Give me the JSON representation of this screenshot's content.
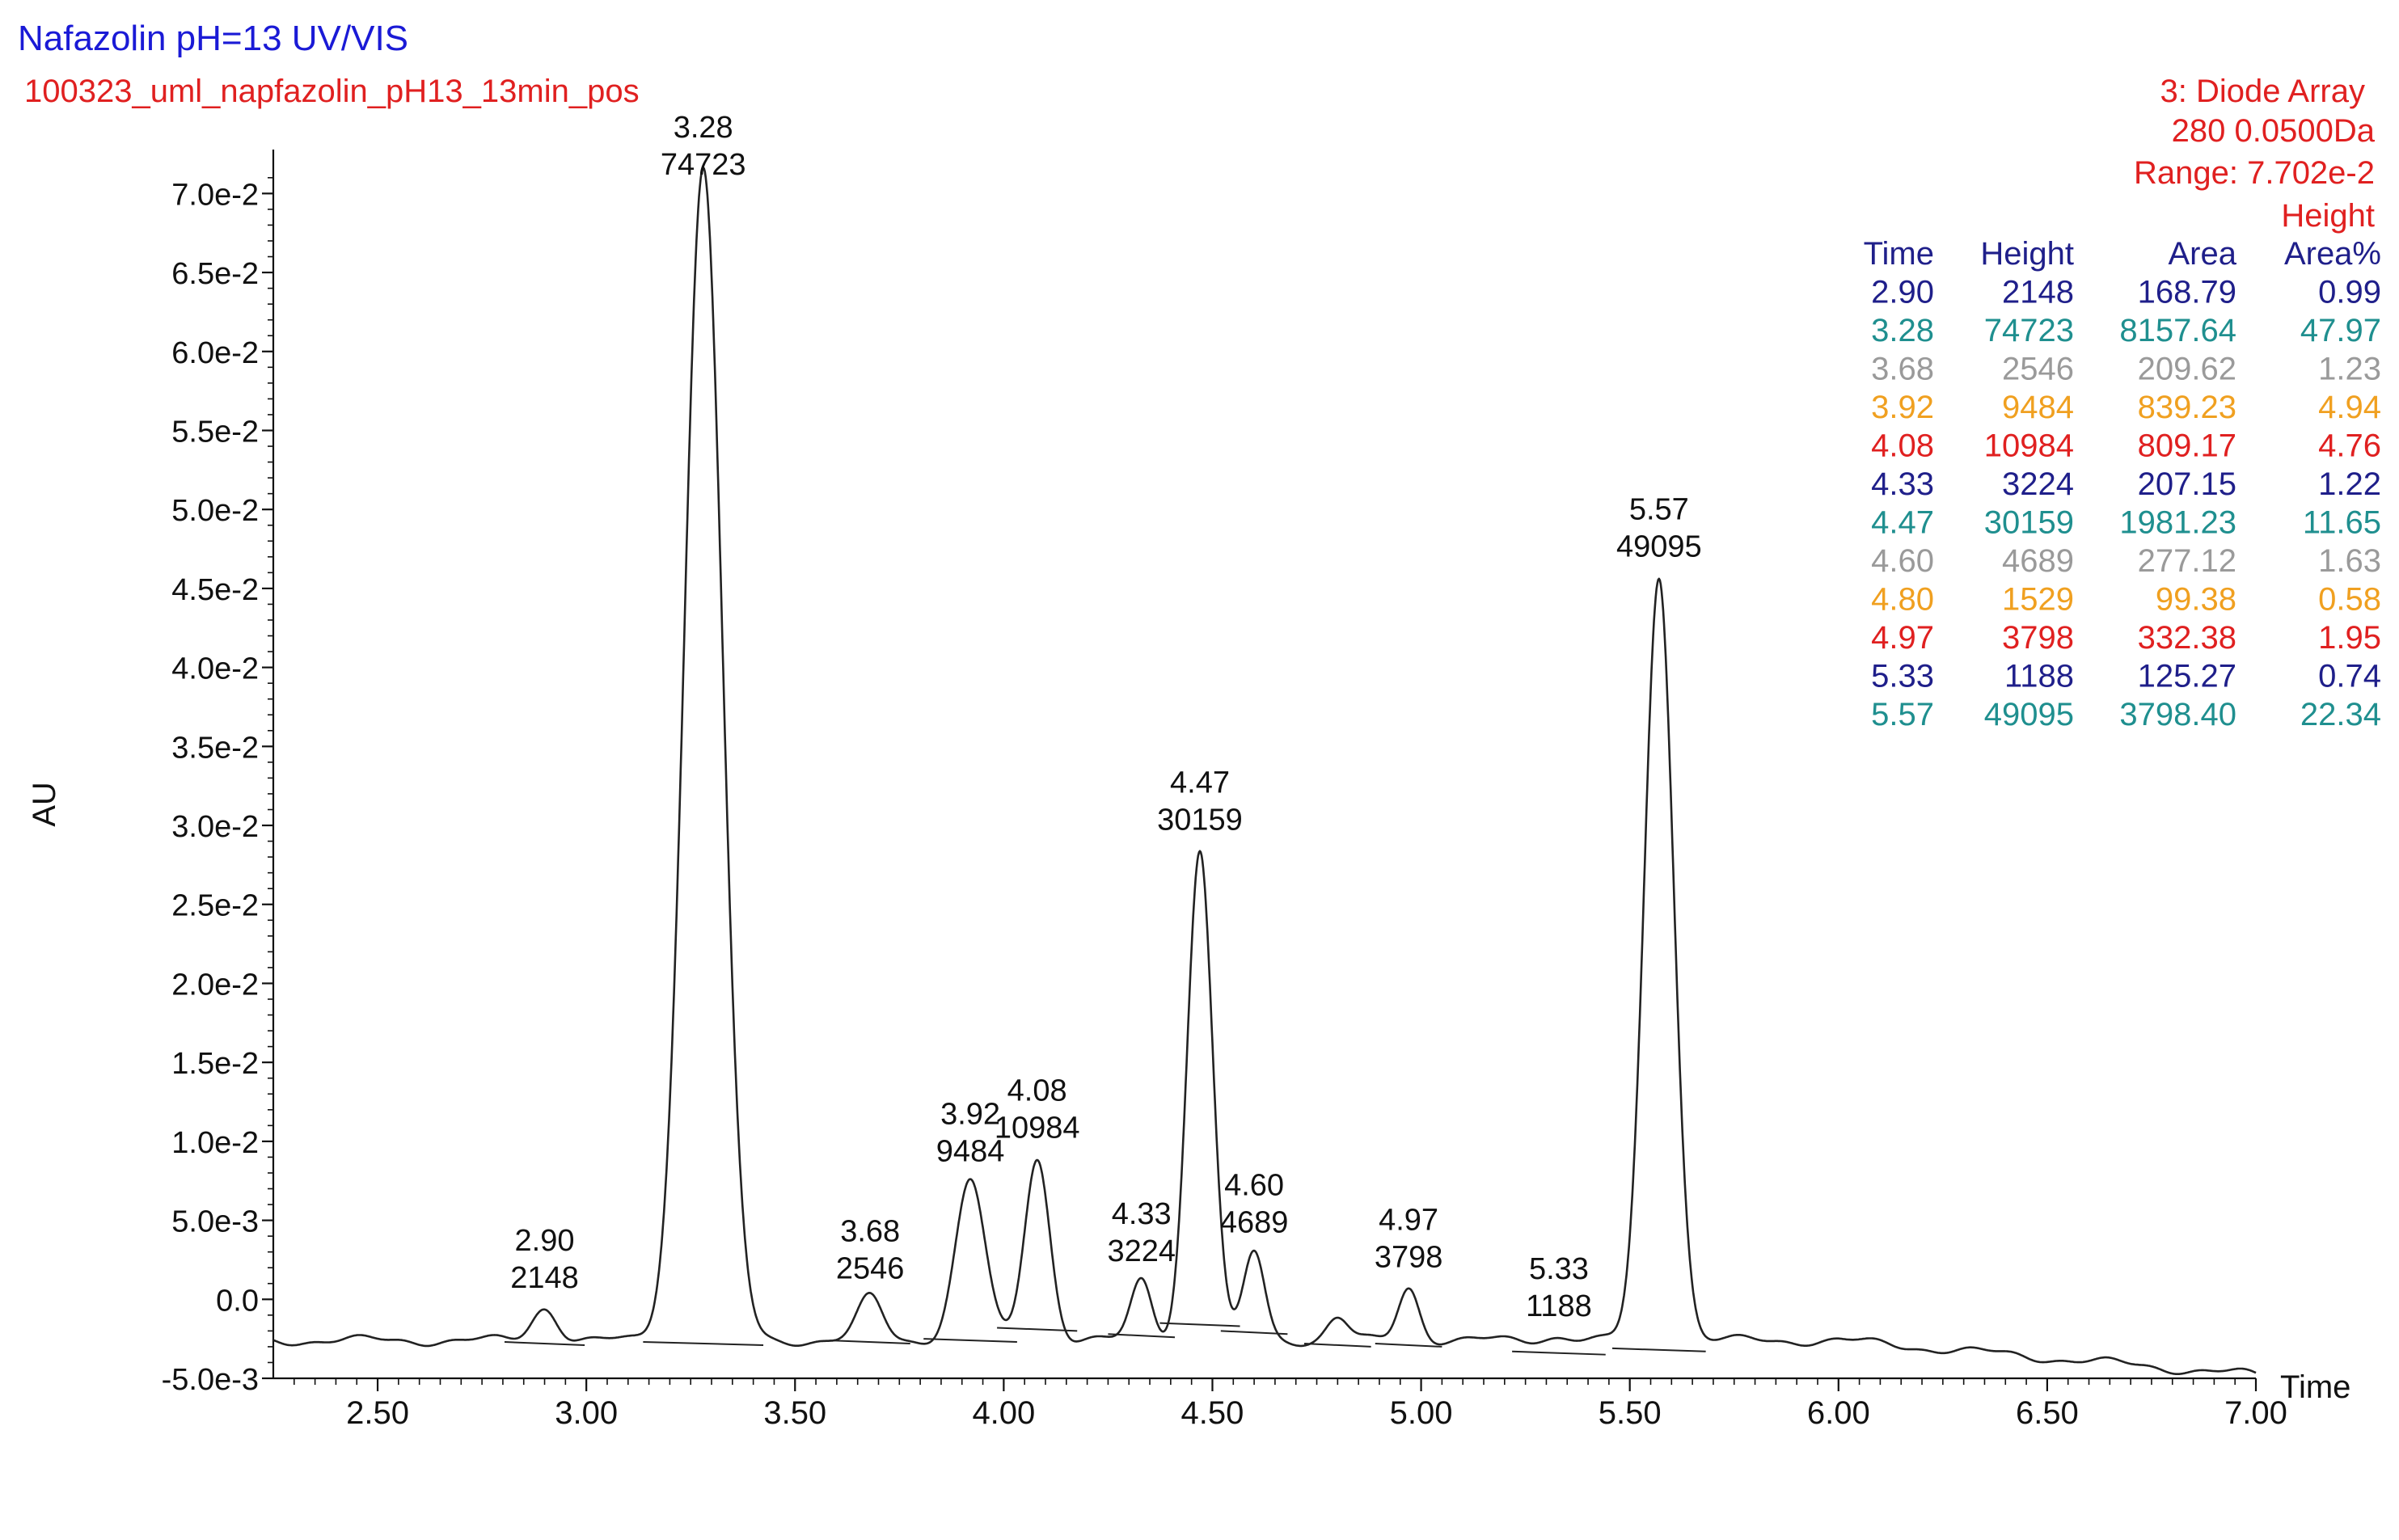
{
  "header": {
    "title": "Nafazolin pH=13 UV/VIS",
    "subtitle": "100323_uml_napfazolin_pH13_13min_pos"
  },
  "info": {
    "line1": "3: Diode Array",
    "line2": "280 0.0500Da",
    "line3": "Range: 7.702e-2",
    "line4": "Height"
  },
  "colors": {
    "title": "#1a1ad6",
    "subtitle": "#e02020",
    "row_palette": [
      "#1f1f8a",
      "#1f8f8f",
      "#9a9a9a",
      "#f0a020",
      "#e02020"
    ]
  },
  "peak_table": {
    "headers": [
      "Time",
      "Height",
      "Area",
      "Area%"
    ],
    "rows": [
      {
        "time": "2.90",
        "height": "2148",
        "area": "168.79",
        "pct": "0.99",
        "color": "#1f1f8a"
      },
      {
        "time": "3.28",
        "height": "74723",
        "area": "8157.64",
        "pct": "47.97",
        "color": "#1f8f8f"
      },
      {
        "time": "3.68",
        "height": "2546",
        "area": "209.62",
        "pct": "1.23",
        "color": "#9a9a9a"
      },
      {
        "time": "3.92",
        "height": "9484",
        "area": "839.23",
        "pct": "4.94",
        "color": "#f0a020"
      },
      {
        "time": "4.08",
        "height": "10984",
        "area": "809.17",
        "pct": "4.76",
        "color": "#e02020"
      },
      {
        "time": "4.33",
        "height": "3224",
        "area": "207.15",
        "pct": "1.22",
        "color": "#1f1f8a"
      },
      {
        "time": "4.47",
        "height": "30159",
        "area": "1981.23",
        "pct": "11.65",
        "color": "#1f8f8f"
      },
      {
        "time": "4.60",
        "height": "4689",
        "area": "277.12",
        "pct": "1.63",
        "color": "#9a9a9a"
      },
      {
        "time": "4.80",
        "height": "1529",
        "area": "99.38",
        "pct": "0.58",
        "color": "#f0a020"
      },
      {
        "time": "4.97",
        "height": "3798",
        "area": "332.38",
        "pct": "1.95",
        "color": "#e02020"
      },
      {
        "time": "5.33",
        "height": "1188",
        "area": "125.27",
        "pct": "0.74",
        "color": "#1f1f8a"
      },
      {
        "time": "5.57",
        "height": "49095",
        "area": "3798.40",
        "pct": "22.34",
        "color": "#1f8f8f"
      }
    ]
  },
  "chart_data": {
    "type": "line",
    "xlabel": "Time",
    "ylabel": "AU",
    "xlim": [
      2.25,
      7.0
    ],
    "ylim": [
      -0.005,
      0.0714
    ],
    "x_ticks": [
      2.5,
      3.0,
      3.5,
      4.0,
      4.5,
      5.0,
      5.5,
      6.0,
      6.5,
      7.0
    ],
    "x_tick_labels": [
      "2.50",
      "3.00",
      "3.50",
      "4.00",
      "4.50",
      "5.00",
      "5.50",
      "6.00",
      "6.50",
      "7.00"
    ],
    "y_ticks": [
      -0.005,
      0.0,
      0.005,
      0.01,
      0.015,
      0.02,
      0.025,
      0.03,
      0.035,
      0.04,
      0.045,
      0.05,
      0.055,
      0.06,
      0.065,
      0.07
    ],
    "y_tick_labels": [
      "-5.0e-3",
      "0.0",
      "5.0e-3",
      "1.0e-2",
      "1.5e-2",
      "2.0e-2",
      "2.5e-2",
      "3.0e-2",
      "3.5e-2",
      "4.0e-2",
      "4.5e-2",
      "5.0e-2",
      "5.5e-2",
      "6.0e-2",
      "6.5e-2",
      "7.0e-2"
    ],
    "grid": false,
    "baseline_au": -0.0026,
    "peaks": [
      {
        "rt": 2.9,
        "label_rt": "2.90",
        "label_height": "2148",
        "apex_au": -0.0005,
        "width": 0.03,
        "base_au": -0.0027
      },
      {
        "rt": 3.28,
        "label_rt": "3.28",
        "label_height": "74723",
        "apex_au": 0.0718,
        "width": 0.045,
        "base_au": -0.0027
      },
      {
        "rt": 3.68,
        "label_rt": "3.68",
        "label_height": "2546",
        "apex_au": 0.0001,
        "width": 0.03,
        "base_au": -0.0026
      },
      {
        "rt": 3.92,
        "label_rt": "3.92",
        "label_height": "9484",
        "apex_au": 0.0075,
        "width": 0.035,
        "base_au": -0.0025
      },
      {
        "rt": 4.08,
        "label_rt": "4.08",
        "label_height": "10984",
        "apex_au": 0.009,
        "width": 0.03,
        "base_au": -0.0018
      },
      {
        "rt": 4.33,
        "label_rt": "4.33",
        "label_height": "3224",
        "apex_au": 0.0012,
        "width": 0.025,
        "base_au": -0.0022
      },
      {
        "rt": 4.47,
        "label_rt": "4.47",
        "label_height": "30159",
        "apex_au": 0.0285,
        "width": 0.03,
        "base_au": -0.0015
      },
      {
        "rt": 4.6,
        "label_rt": "4.60",
        "label_height": "4689",
        "apex_au": 0.003,
        "width": 0.025,
        "base_au": -0.002
      },
      {
        "rt": 4.8,
        "label_rt": "",
        "label_height": "",
        "apex_au": -0.0012,
        "width": 0.025,
        "base_au": -0.0028
      },
      {
        "rt": 4.97,
        "label_rt": "4.97",
        "label_height": "3798",
        "apex_au": 0.0008,
        "width": 0.025,
        "base_au": -0.0028
      },
      {
        "rt": 5.33,
        "label_rt": "5.33",
        "label_height": "1188",
        "apex_au": -0.0023,
        "width": 0.035,
        "base_au": -0.0033
      },
      {
        "rt": 5.57,
        "label_rt": "5.57",
        "label_height": "49095",
        "apex_au": 0.0458,
        "width": 0.035,
        "base_au": -0.0031
      }
    ]
  }
}
